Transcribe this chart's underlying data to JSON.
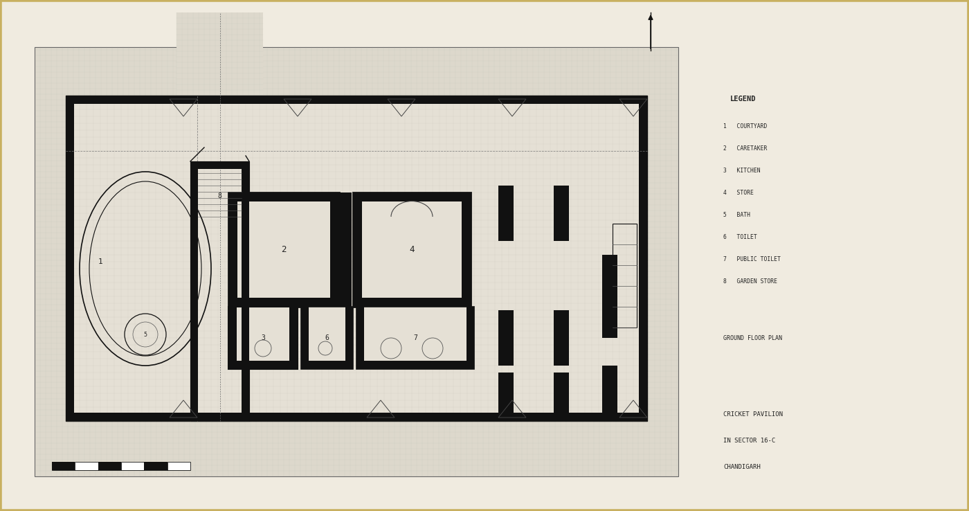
{
  "bg_color": "#f2ede3",
  "paper_color": "#f0ebe0",
  "site_color": "#ddd8cc",
  "floor_color": "#e5e0d5",
  "wall_color": "#111111",
  "line_color": "#333333",
  "text_color": "#222222",
  "border_color": "#c8b060",
  "legend_title": "LEGEND",
  "legend_items": [
    "1   COURTYARD",
    "2   CARETAKER",
    "3   KITCHEN",
    "4   STORE",
    "5   BATH",
    "6   TOILET",
    "7   PUBLIC TOILET",
    "8   GARDEN STORE"
  ],
  "subtitle": "GROUND FLOOR PLAN",
  "title_line1": "CRICKET PAVILION",
  "title_line2": "IN SECTOR 16-C",
  "title_line3": "CHANDIGARH"
}
